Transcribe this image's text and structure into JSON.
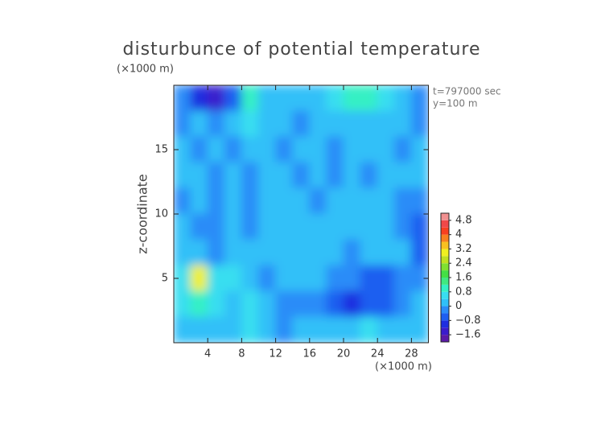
{
  "chart_data": {
    "type": "contour",
    "title": "disturbunce of potential temperature",
    "y_unit": "(×1000 m)",
    "x_unit": "(×1000 m)",
    "ylabel": "z-coordinate",
    "annotations": [
      "t=797000 sec",
      "y=100 m"
    ],
    "xlim": [
      0,
      30
    ],
    "ylim": [
      0,
      20
    ],
    "xticks": [
      4,
      8,
      12,
      16,
      20,
      24,
      28
    ],
    "yticks": [
      5,
      10,
      15
    ],
    "z": [
      [
        -0.4,
        -1.2,
        -1.4,
        -0.8,
        0.8,
        0.2,
        0,
        0,
        0,
        0.4,
        0.8,
        1.0,
        0.6,
        0,
        -0.4
      ],
      [
        -0.2,
        0,
        -0.4,
        0,
        0.4,
        0.2,
        0,
        -0.4,
        0,
        0,
        0,
        0.2,
        0.2,
        0,
        -0.2
      ],
      [
        0,
        -0.4,
        0,
        -0.4,
        0,
        0,
        -0.4,
        0,
        0,
        -0.4,
        0,
        0,
        0,
        -0.4,
        0
      ],
      [
        0,
        0,
        -0.4,
        0,
        -0.4,
        0,
        0,
        -0.4,
        0,
        -0.4,
        0,
        -0.4,
        0,
        0,
        0
      ],
      [
        -0.4,
        0,
        -0.4,
        0,
        -0.4,
        0,
        0,
        0,
        -0.4,
        0,
        0,
        0,
        0,
        -0.4,
        -0.4
      ],
      [
        0,
        -0.4,
        -0.4,
        0,
        -0.4,
        0,
        0,
        0,
        0,
        0,
        0,
        0,
        0,
        -0.4,
        -0.8
      ],
      [
        0,
        0,
        -0.4,
        0,
        0,
        0,
        0,
        0,
        0,
        0,
        -0.4,
        0,
        0,
        0,
        -0.8
      ],
      [
        0.4,
        2.8,
        0.4,
        0.4,
        0,
        -0.4,
        0,
        0,
        0,
        -0.4,
        -0.4,
        -0.8,
        -0.8,
        -0.4,
        -0.4
      ],
      [
        0.4,
        0.8,
        0.4,
        0,
        0.4,
        0,
        -0.4,
        -0.4,
        -0.4,
        -0.8,
        -1.0,
        -0.8,
        -0.8,
        -0.4,
        0
      ],
      [
        0,
        0,
        0,
        0,
        0.4,
        0,
        -0.4,
        0,
        0,
        0,
        0,
        0.4,
        0,
        0,
        0
      ]
    ],
    "levels": [
      -2.0,
      -1.6,
      -1.2,
      -0.8,
      -0.4,
      0,
      0.4,
      0.8,
      1.2,
      1.6,
      2.0,
      2.4,
      2.8,
      3.2,
      3.6,
      4.0,
      4.4,
      4.8,
      5.2
    ],
    "colors": [
      "#5a1aa8",
      "#3a1ccc",
      "#1e2ee0",
      "#1e5ef0",
      "#2b8cf8",
      "#30c0f8",
      "#38def0",
      "#34f0c4",
      "#40e880",
      "#44e044",
      "#80e030",
      "#c0e020",
      "#f0f020",
      "#f8c020",
      "#f88020",
      "#f84020",
      "#f04848",
      "#f09090"
    ],
    "cbar_ticks": [
      {
        "value": -1.6,
        "label": "−1.6"
      },
      {
        "value": -0.8,
        "label": "−0.8"
      },
      0,
      0.8,
      1.6,
      2.4,
      3.2,
      4,
      4.8
    ]
  }
}
